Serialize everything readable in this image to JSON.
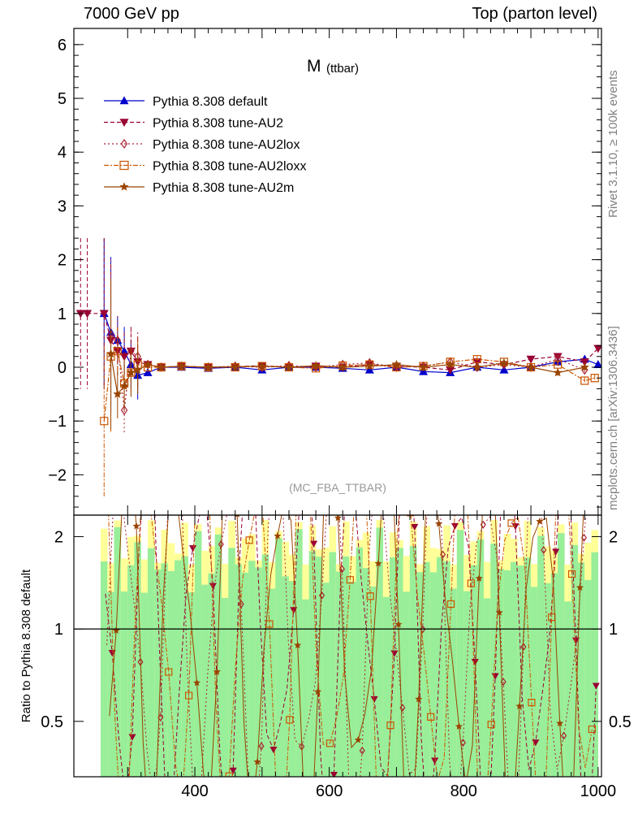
{
  "header": {
    "left": "7000 GeV pp",
    "right": "Top (parton level)"
  },
  "side_text": {
    "top": "Rivet 3.1.10, ≥ 100k events",
    "bottom": "mcplots.cern.ch [arXiv:1306.3436]"
  },
  "chart_data": [
    {
      "type": "line",
      "title": "M",
      "title_sub": "(ttbar)",
      "watermark": "(MC_FBA_TTBAR)",
      "xlim": [
        220,
        1005
      ],
      "ylim": [
        -2.75,
        6.3
      ],
      "yticks": [
        -2,
        -1,
        0,
        1,
        2,
        3,
        4,
        5,
        6
      ],
      "ytick_labels": [
        "−2",
        "−1",
        "0",
        "1",
        "2",
        "3",
        "4",
        "5",
        "6"
      ],
      "legend_position": "top-left",
      "series": [
        {
          "name": "Pythia 8.308 default",
          "color": "#0000cc",
          "marker": "triangle-up",
          "dash": "",
          "x": [
            265,
            275,
            285,
            295,
            305,
            315,
            330,
            350,
            380,
            420,
            460,
            500,
            540,
            580,
            620,
            660,
            700,
            740,
            780,
            820,
            860,
            900,
            940,
            980,
            1000
          ],
          "y": [
            1.0,
            0.65,
            0.5,
            0.3,
            0.05,
            -0.15,
            -0.1,
            0.0,
            0.0,
            -0.02,
            0.0,
            -0.05,
            0.0,
            0.0,
            -0.02,
            -0.05,
            0.0,
            -0.08,
            -0.1,
            0.0,
            -0.05,
            0.0,
            0.1,
            0.15,
            0.05
          ]
        },
        {
          "name": "Pythia 8.308 tune-AU2",
          "color": "#990033",
          "marker": "triangle-down",
          "dash": "5,3",
          "x": [
            230,
            240,
            265,
            275,
            285,
            295,
            305,
            315,
            330,
            350,
            380,
            420,
            460,
            500,
            540,
            580,
            620,
            660,
            700,
            740,
            780,
            820,
            860,
            900,
            940,
            980,
            1000
          ],
          "y": [
            1.0,
            1.0,
            1.0,
            0.5,
            0.3,
            0.2,
            0.3,
            0.1,
            0.05,
            0.0,
            0.02,
            0.0,
            0.01,
            0.03,
            0.0,
            0.02,
            0.0,
            0.05,
            0.02,
            0.0,
            -0.05,
            0.1,
            0.05,
            0.15,
            0.2,
            0.1,
            0.35
          ]
        },
        {
          "name": "Pythia 8.308 tune-AU2lox",
          "color": "#aa2233",
          "marker": "diamond-open",
          "dash": "2,3",
          "x": [
            275,
            285,
            295,
            305,
            315,
            330,
            350,
            380,
            420,
            460,
            500,
            540,
            580,
            620,
            660,
            700,
            740,
            780,
            820,
            860,
            900,
            940,
            980
          ],
          "y": [
            0.6,
            0.5,
            -0.8,
            0.3,
            0.2,
            0.05,
            0.0,
            0.02,
            0.0,
            0.02,
            0.0,
            0.03,
            0.0,
            0.05,
            0.08,
            0.0,
            0.02,
            0.1,
            0.0,
            0.05,
            0.0,
            0.15,
            -0.05
          ]
        },
        {
          "name": "Pythia 8.308 tune-AU2loxx",
          "color": "#cc5500",
          "marker": "square-open",
          "dash": "6,2,2,2",
          "x": [
            265,
            275,
            285,
            295,
            305,
            315,
            330,
            350,
            380,
            420,
            460,
            500,
            540,
            580,
            620,
            660,
            700,
            740,
            780,
            820,
            860,
            900,
            940,
            980,
            995
          ],
          "y": [
            -1.0,
            0.2,
            0.3,
            -0.3,
            -0.1,
            0.05,
            0.0,
            0.0,
            0.02,
            0.0,
            0.0,
            0.02,
            0.0,
            -0.02,
            0.03,
            0.05,
            0.0,
            0.02,
            0.1,
            0.15,
            0.1,
            0.0,
            0.05,
            -0.25,
            -0.2
          ]
        },
        {
          "name": "Pythia 8.308 tune-AU2m",
          "color": "#994400",
          "marker": "star",
          "dash": "",
          "x": [
            275,
            285,
            295,
            305,
            315,
            330,
            350,
            380,
            420,
            460,
            500,
            540,
            580,
            620,
            660,
            700,
            740,
            780,
            820,
            860,
            900,
            940,
            980
          ],
          "y": [
            0.25,
            -0.5,
            -0.35,
            -0.1,
            -0.05,
            0.05,
            0.0,
            0.02,
            0.0,
            0.01,
            0.02,
            0.0,
            0.03,
            0.0,
            0.02,
            0.05,
            0.0,
            0.05,
            0.0,
            0.08,
            0.0,
            -0.1,
            0.0
          ]
        }
      ]
    },
    {
      "type": "line",
      "ylabel": "Ratio to Pythia 8.308 default",
      "xlim": [
        220,
        1005
      ],
      "xticks": [
        400,
        600,
        800,
        1000
      ],
      "xtick_labels": [
        "400",
        "600",
        "800",
        "1000"
      ],
      "ylim": [
        0.33,
        2.35
      ],
      "ytick_labels": [
        "0.5",
        "1",
        "2"
      ],
      "reference_line": 1
    }
  ]
}
